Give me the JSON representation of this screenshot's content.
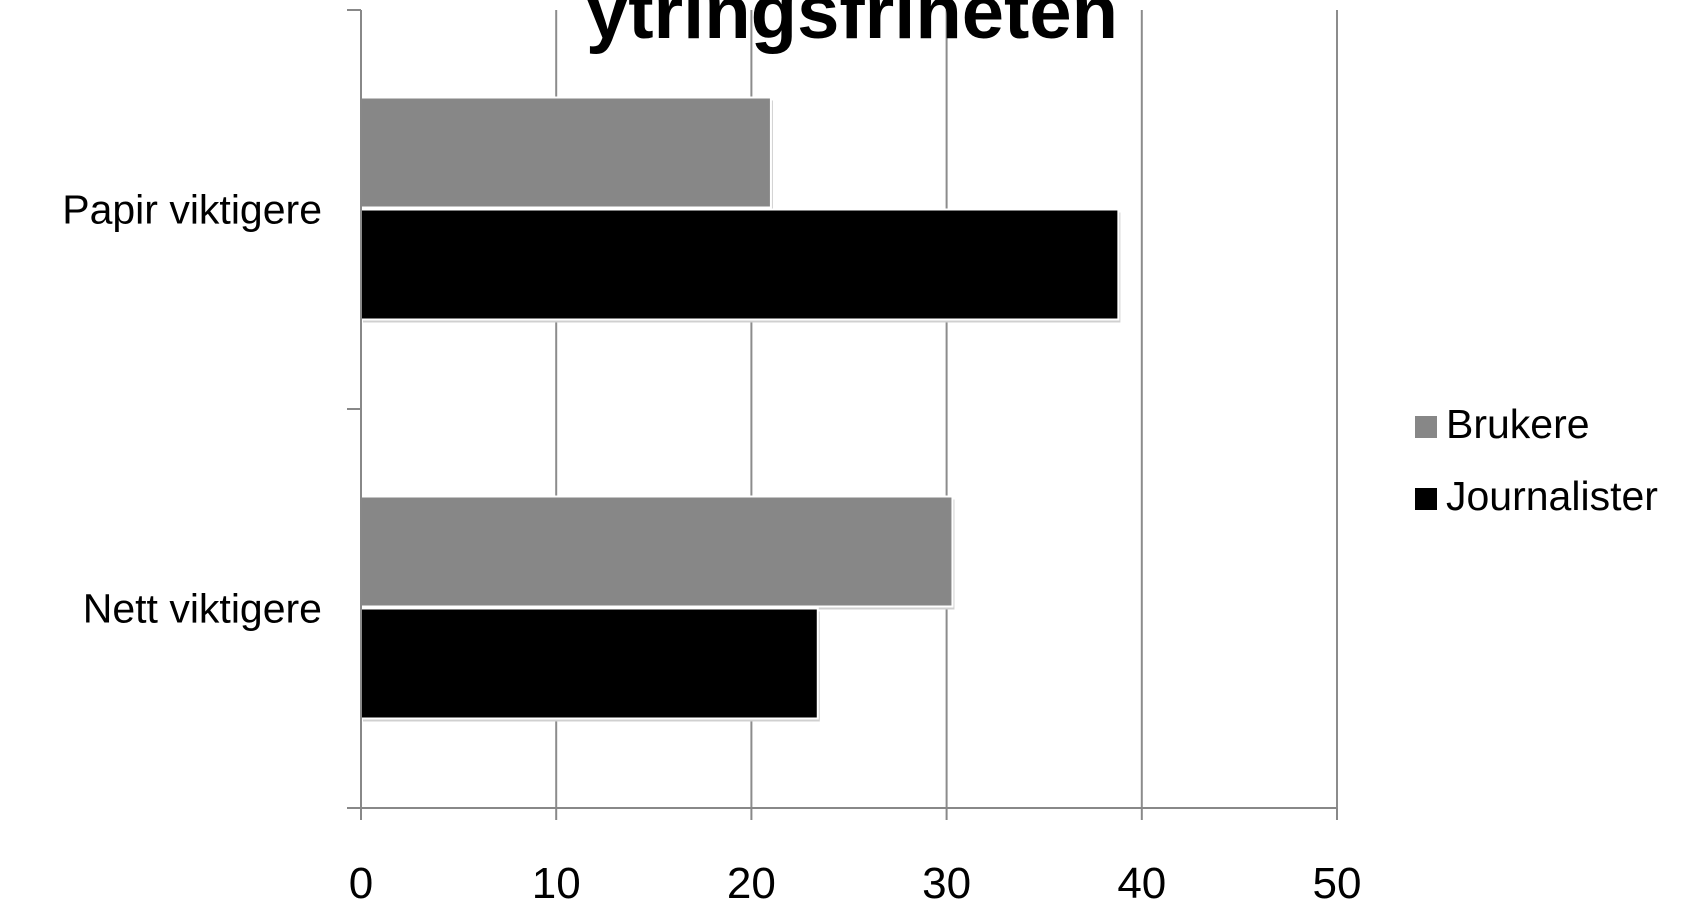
{
  "chart_data": {
    "type": "bar",
    "orientation": "horizontal",
    "title": "ytringsfriheten",
    "categories": [
      "Papir viktigere",
      "Nett viktigere"
    ],
    "series": [
      {
        "name": "Brukere",
        "color": "#878787",
        "values": [
          21,
          30.3
        ]
      },
      {
        "name": "Journalister",
        "color": "#000000",
        "values": [
          38.8,
          23.4
        ]
      }
    ],
    "xlim": [
      0,
      50
    ],
    "xticks": [
      "0",
      "10",
      "20",
      "30",
      "40",
      "50"
    ],
    "grid": "vertical",
    "legend": "right"
  }
}
